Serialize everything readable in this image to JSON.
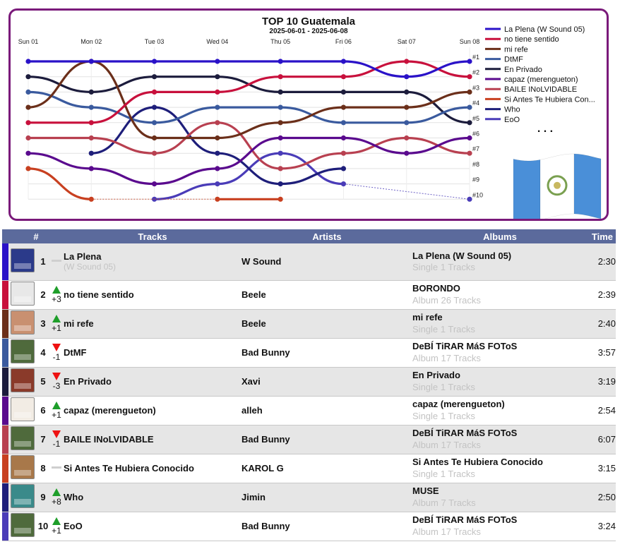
{
  "chart_data": {
    "type": "line",
    "title": "TOP 10 Guatemala",
    "subtitle": "2025-06-01 - 2025-06-08",
    "x": [
      "Sun 01",
      "Mon 02",
      "Tue 03",
      "Wed 04",
      "Thu 05",
      "Fri 06",
      "Sat 07",
      "Sun 08"
    ],
    "rank_labels": [
      "#1",
      "#2",
      "#3",
      "#4",
      "#5",
      "#6",
      "#7",
      "#8",
      "#9",
      "#10"
    ],
    "y_axis": "rank, 1 at top, 10 at bottom",
    "series": [
      {
        "name": "La Plena (W Sound 05)",
        "color": "#2a12c8",
        "ranks": [
          1,
          1,
          1,
          1,
          1,
          1,
          2,
          1
        ]
      },
      {
        "name": "no tiene sentido",
        "color": "#c8103c",
        "ranks": [
          5,
          5,
          3,
          3,
          2,
          2,
          1,
          2
        ]
      },
      {
        "name": "mi refe",
        "color": "#6b2f1a",
        "ranks": [
          4,
          1,
          6,
          6,
          5,
          4,
          4,
          3
        ]
      },
      {
        "name": "DtMF",
        "color": "#3a5a9e",
        "ranks": [
          3,
          4,
          5,
          4,
          4,
          5,
          5,
          4
        ]
      },
      {
        "name": "En Privado",
        "color": "#1c1c3c",
        "ranks": [
          2,
          3,
          2,
          2,
          3,
          3,
          3,
          5
        ]
      },
      {
        "name": "capaz (merengueton)",
        "color": "#5a0a8e",
        "ranks": [
          7,
          8,
          9,
          8,
          6,
          6,
          7,
          6
        ]
      },
      {
        "name": "BAILE INoLVIDABLE",
        "color": "#b84050",
        "ranks": [
          6,
          6,
          7,
          5,
          8,
          7,
          6,
          7
        ]
      },
      {
        "name": "Si Antes Te Hubiera Conocido",
        "color": "#c84020",
        "ranks": [
          8,
          10,
          null,
          10,
          10,
          null,
          null,
          null
        ]
      },
      {
        "name": "Who",
        "color": "#1e1e7a",
        "ranks": [
          null,
          7,
          4,
          7,
          9,
          8,
          null,
          null
        ]
      },
      {
        "name": "EoO",
        "color": "#4a3cb8",
        "ranks": [
          null,
          null,
          10,
          9,
          7,
          9,
          null,
          10
        ]
      }
    ],
    "legend": "right",
    "legend_more": ". . ."
  },
  "table": {
    "headers": {
      "rank": "#",
      "tracks": "Tracks",
      "artists": "Artists",
      "albums": "Albums",
      "time": "Time"
    },
    "rows": [
      {
        "rank": "1",
        "move": "same",
        "delta": "",
        "title": "La Plena",
        "title_sub": "(W Sound 05)",
        "artist": "W Sound",
        "album": "La Plena (W Sound 05)",
        "album_info": "Single 1 Tracks",
        "time": "2:30",
        "color": "#2a12c8",
        "cover": "#2b3a8a"
      },
      {
        "rank": "2",
        "move": "up",
        "delta": "+3",
        "title": "no tiene sentido",
        "title_sub": "",
        "artist": "Beele",
        "album": "BORONDO",
        "album_info": "Album 26 Tracks",
        "time": "2:39",
        "color": "#c8103c",
        "cover": "#e8e8e8"
      },
      {
        "rank": "3",
        "move": "up",
        "delta": "+1",
        "title": "mi refe",
        "title_sub": "",
        "artist": "Beele",
        "album": "mi refe",
        "album_info": "Single 1 Tracks",
        "time": "2:40",
        "color": "#6b2f1a",
        "cover": "#c99070"
      },
      {
        "rank": "4",
        "move": "down",
        "delta": "-1",
        "title": "DtMF",
        "title_sub": "",
        "artist": "Bad Bunny",
        "album": "DeBÍ TiRAR MáS FOToS",
        "album_info": "Album 17 Tracks",
        "time": "3:57",
        "color": "#3a5a9e",
        "cover": "#4f6a3c"
      },
      {
        "rank": "5",
        "move": "down",
        "delta": "-3",
        "title": "En Privado",
        "title_sub": "",
        "artist": "Xavi",
        "album": "En Privado",
        "album_info": "Single 1 Tracks",
        "time": "3:19",
        "color": "#1c1c3c",
        "cover": "#8a3a2a"
      },
      {
        "rank": "6",
        "move": "up",
        "delta": "+1",
        "title": "capaz (merengueton)",
        "title_sub": "",
        "artist": "alleh",
        "album": "capaz (merengueton)",
        "album_info": "Single 1 Tracks",
        "time": "2:54",
        "color": "#5a0a8e",
        "cover": "#f2ece4"
      },
      {
        "rank": "7",
        "move": "down",
        "delta": "-1",
        "title": "BAILE INoLVIDABLE",
        "title_sub": "",
        "artist": "Bad Bunny",
        "album": "DeBÍ TiRAR MáS FOToS",
        "album_info": "Album 17 Tracks",
        "time": "6:07",
        "color": "#b84050",
        "cover": "#4f6a3c"
      },
      {
        "rank": "8",
        "move": "same",
        "delta": "",
        "title": "Si Antes Te Hubiera Conocido",
        "title_sub": "",
        "artist": "KAROL G",
        "album": "Si Antes Te Hubiera Conocido",
        "album_info": "Single 1 Tracks",
        "time": "3:15",
        "color": "#c84020",
        "cover": "#a8784a"
      },
      {
        "rank": "9",
        "move": "up",
        "delta": "+8",
        "title": "Who",
        "title_sub": "",
        "artist": "Jimin",
        "album": "MUSE",
        "album_info": "Album 7 Tracks",
        "time": "2:50",
        "color": "#1e1e7a",
        "cover": "#3a8a8a"
      },
      {
        "rank": "10",
        "move": "up",
        "delta": "+1",
        "title": "EoO",
        "title_sub": "",
        "artist": "Bad Bunny",
        "album": "DeBÍ TiRAR MáS FOToS",
        "album_info": "Album 17 Tracks",
        "time": "3:24",
        "color": "#4a3cb8",
        "cover": "#4f6a3c"
      }
    ]
  },
  "flag": {
    "icon": "guatemala-flag-icon",
    "colors": {
      "blue": "#4a8fd8",
      "white": "#ffffff",
      "emblem": "#7aa050"
    }
  }
}
